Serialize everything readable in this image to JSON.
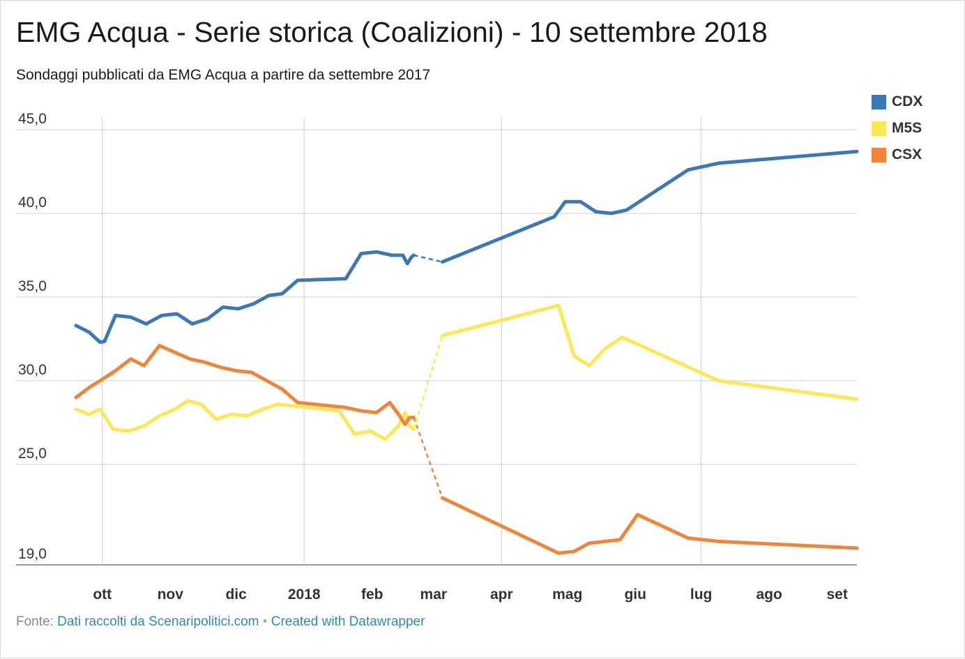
{
  "title": "EMG Acqua - Serie storica (Coalizioni) - 10 settembre 2018",
  "subtitle": "Sondaggi pubblicati da EMG Acqua a partire da settembre 2017",
  "footer": {
    "source_prefix": "Fonte:",
    "source_link": "Dati raccolti da Scenaripolitici.com",
    "separator": "•",
    "credit_link": "Created with Datawrapper"
  },
  "legend": [
    {
      "label": "CDX",
      "color": "#3b78b5"
    },
    {
      "label": "M5S",
      "color": "#fbe854"
    },
    {
      "label": "CSX",
      "color": "#f0853a"
    }
  ],
  "chart_data": {
    "type": "line",
    "title": "EMG Acqua - Serie storica (Coalizioni) - 10 settembre 2018",
    "subtitle": "Sondaggi pubblicati da EMG Acqua a partire da settembre 2017",
    "xlabel": "",
    "ylabel": "",
    "x_range": [
      "2017-09-19",
      "2018-09-10"
    ],
    "ylim": [
      19.0,
      45.0
    ],
    "yticks": [
      "45,0",
      "40,0",
      "35,0",
      "30,0",
      "25,0",
      "19,0"
    ],
    "ytick_values": [
      45,
      40,
      35,
      30,
      25,
      19
    ],
    "xticks": [
      {
        "date": "2017-10-01",
        "label": "ott"
      },
      {
        "date": "2017-11-01",
        "label": "nov"
      },
      {
        "date": "2017-12-01",
        "label": "dic"
      },
      {
        "date": "2018-01-01",
        "label": "2018"
      },
      {
        "date": "2018-02-01",
        "label": "feb"
      },
      {
        "date": "2018-03-01",
        "label": "mar"
      },
      {
        "date": "2018-04-01",
        "label": "apr"
      },
      {
        "date": "2018-05-01",
        "label": "mag"
      },
      {
        "date": "2018-06-01",
        "label": "giu"
      },
      {
        "date": "2018-07-01",
        "label": "lug"
      },
      {
        "date": "2018-08-01",
        "label": "ago"
      },
      {
        "date": "2018-09-01",
        "label": "set"
      }
    ],
    "vertical_gridlines": [
      "2017-10-01",
      "2018-01-01",
      "2018-04-01",
      "2018-07-01"
    ],
    "grid": true,
    "legend_position": "top-right",
    "gap": {
      "from": "2018-02-20",
      "to": "2018-03-05",
      "style": "dashed"
    },
    "series": [
      {
        "name": "CDX",
        "color": "#3b78b5",
        "points": [
          [
            "2017-09-19",
            33.3
          ],
          [
            "2017-09-25",
            32.9
          ],
          [
            "2017-09-30",
            32.3
          ],
          [
            "2017-10-02",
            32.35
          ],
          [
            "2017-10-07",
            33.9
          ],
          [
            "2017-10-14",
            33.8
          ],
          [
            "2017-10-21",
            33.4
          ],
          [
            "2017-10-28",
            33.9
          ],
          [
            "2017-11-04",
            34.0
          ],
          [
            "2017-11-11",
            33.4
          ],
          [
            "2017-11-18",
            33.7
          ],
          [
            "2017-11-25",
            34.4
          ],
          [
            "2017-12-02",
            34.3
          ],
          [
            "2017-12-09",
            34.6
          ],
          [
            "2017-12-16",
            35.1
          ],
          [
            "2017-12-22",
            35.2
          ],
          [
            "2017-12-29",
            36.0
          ],
          [
            "2018-01-20",
            36.1
          ],
          [
            "2018-01-27",
            37.6
          ],
          [
            "2018-02-03",
            37.7
          ],
          [
            "2018-02-10",
            37.5
          ],
          [
            "2018-02-15",
            37.5
          ],
          [
            "2018-02-17",
            37.0
          ],
          [
            "2018-02-19",
            37.4
          ],
          [
            "2018-02-20",
            37.5
          ],
          [
            "2018-03-05",
            37.1
          ],
          [
            "2018-04-25",
            39.8
          ],
          [
            "2018-04-30",
            40.7
          ],
          [
            "2018-05-07",
            40.7
          ],
          [
            "2018-05-14",
            40.1
          ],
          [
            "2018-05-21",
            40.0
          ],
          [
            "2018-05-28",
            40.2
          ],
          [
            "2018-06-25",
            42.6
          ],
          [
            "2018-07-09",
            43.0
          ],
          [
            "2018-09-10",
            43.7
          ]
        ]
      },
      {
        "name": "M5S",
        "color": "#fbe854",
        "points": [
          [
            "2017-09-19",
            28.3
          ],
          [
            "2017-09-25",
            28.0
          ],
          [
            "2017-09-30",
            28.3
          ],
          [
            "2017-10-06",
            27.1
          ],
          [
            "2017-10-13",
            27.0
          ],
          [
            "2017-10-20",
            27.3
          ],
          [
            "2017-10-27",
            27.9
          ],
          [
            "2017-11-03",
            28.3
          ],
          [
            "2017-11-09",
            28.8
          ],
          [
            "2017-11-15",
            28.6
          ],
          [
            "2017-11-22",
            27.7
          ],
          [
            "2017-11-29",
            28.0
          ],
          [
            "2017-12-06",
            27.9
          ],
          [
            "2017-12-13",
            28.3
          ],
          [
            "2017-12-20",
            28.6
          ],
          [
            "2017-12-27",
            28.5
          ],
          [
            "2018-01-17",
            28.2
          ],
          [
            "2018-01-24",
            26.8
          ],
          [
            "2018-01-31",
            27.0
          ],
          [
            "2018-02-07",
            26.5
          ],
          [
            "2018-02-13",
            27.3
          ],
          [
            "2018-02-16",
            28.1
          ],
          [
            "2018-02-18",
            27.3
          ],
          [
            "2018-02-20",
            27.1
          ],
          [
            "2018-03-05",
            32.7
          ],
          [
            "2018-04-27",
            34.5
          ],
          [
            "2018-05-04",
            31.5
          ],
          [
            "2018-05-11",
            30.9
          ],
          [
            "2018-05-18",
            31.9
          ],
          [
            "2018-05-26",
            32.6
          ],
          [
            "2018-07-09",
            30.0
          ],
          [
            "2018-09-10",
            28.9
          ]
        ]
      },
      {
        "name": "CSX",
        "color": "#f0853a",
        "points": [
          [
            "2017-09-19",
            29.0
          ],
          [
            "2017-09-25",
            29.6
          ],
          [
            "2017-09-30",
            30.0
          ],
          [
            "2017-10-07",
            30.6
          ],
          [
            "2017-10-14",
            31.3
          ],
          [
            "2017-10-20",
            30.9
          ],
          [
            "2017-10-27",
            32.1
          ],
          [
            "2017-11-03",
            31.7
          ],
          [
            "2017-11-10",
            31.3
          ],
          [
            "2017-11-17",
            31.1
          ],
          [
            "2017-11-24",
            30.8
          ],
          [
            "2017-12-01",
            30.6
          ],
          [
            "2017-12-08",
            30.5
          ],
          [
            "2017-12-15",
            30.0
          ],
          [
            "2017-12-22",
            29.5
          ],
          [
            "2017-12-29",
            28.7
          ],
          [
            "2018-01-20",
            28.4
          ],
          [
            "2018-01-27",
            28.2
          ],
          [
            "2018-02-03",
            28.1
          ],
          [
            "2018-02-09",
            28.7
          ],
          [
            "2018-02-13",
            28.0
          ],
          [
            "2018-02-16",
            27.4
          ],
          [
            "2018-02-18",
            27.8
          ],
          [
            "2018-02-20",
            27.8
          ],
          [
            "2018-03-05",
            23.0
          ],
          [
            "2018-04-27",
            19.7
          ],
          [
            "2018-05-04",
            19.8
          ],
          [
            "2018-05-11",
            20.3
          ],
          [
            "2018-05-25",
            20.5
          ],
          [
            "2018-06-02",
            22.0
          ],
          [
            "2018-06-25",
            20.6
          ],
          [
            "2018-07-09",
            20.4
          ],
          [
            "2018-09-10",
            20.0
          ]
        ]
      }
    ]
  }
}
